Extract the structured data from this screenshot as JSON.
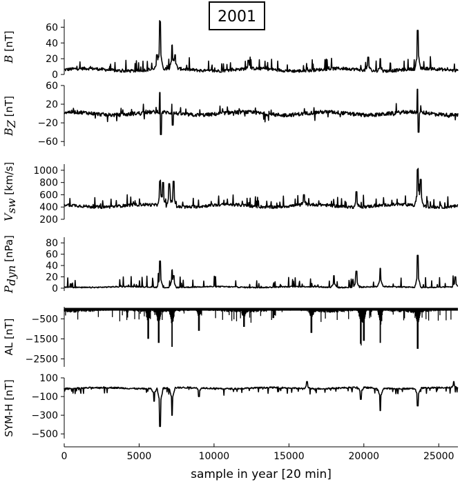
{
  "title": "2001",
  "xlabel": "sample in year [20 min]",
  "chart_data": {
    "type": "line",
    "title": "2001",
    "xlabel": "sample in year [20 min]",
    "xlim": [
      0,
      26280
    ],
    "xticks": [
      0,
      5000,
      10000,
      15000,
      20000,
      25000
    ],
    "xtick_labels": [
      "0",
      "5000",
      "10000",
      "15000",
      "20000",
      "25000"
    ],
    "panels": [
      {
        "ylabel_symbol": "B",
        "ylabel_subscript": "",
        "ylabel_unit": "[nT]",
        "ylim": [
          0,
          70
        ],
        "yticks": [
          0,
          20,
          40,
          60
        ],
        "ytick_labels": [
          "0",
          "20",
          "40",
          "60"
        ],
        "baseline": 6,
        "noise": 2,
        "floor": 2,
        "spikes": [
          [
            6400,
            67
          ],
          [
            6200,
            25
          ],
          [
            7200,
            37
          ],
          [
            7400,
            25
          ],
          [
            23600,
            56
          ],
          [
            20300,
            22
          ],
          [
            21100,
            20
          ],
          [
            12300,
            18
          ]
        ],
        "mode": "line"
      },
      {
        "ylabel_symbol": "B",
        "ylabel_subscript": "Z",
        "ylabel_unit": "[nT]",
        "ylim": [
          -70,
          60
        ],
        "yticks": [
          -60,
          -20,
          20,
          60
        ],
        "ytick_labels": [
          "−60",
          "−20",
          "20",
          "60"
        ],
        "baseline": 0,
        "noise": 4,
        "spikes": [
          [
            6400,
            45
          ],
          [
            6450,
            -45
          ],
          [
            23600,
            52
          ],
          [
            23650,
            -40
          ],
          [
            7200,
            20
          ],
          [
            7250,
            -25
          ]
        ],
        "mode": "line"
      },
      {
        "ylabel_symbol": "V",
        "ylabel_subscript": "sw",
        "ylabel_unit": "[km/s]",
        "ylim": [
          200,
          1100
        ],
        "yticks": [
          200,
          400,
          600,
          800,
          1000
        ],
        "ytick_labels": [
          "200",
          "400",
          "600",
          "800",
          "1000"
        ],
        "baseline": 420,
        "noise": 25,
        "floor": 260,
        "spikes": [
          [
            6400,
            820
          ],
          [
            6600,
            800
          ],
          [
            7000,
            780
          ],
          [
            7300,
            820
          ],
          [
            23600,
            1010
          ],
          [
            23800,
            850
          ],
          [
            16000,
            600
          ],
          [
            19500,
            650
          ]
        ],
        "mode": "line"
      },
      {
        "ylabel_symbol": "P",
        "ylabel_subscript": "dyn",
        "ylabel_unit": "[nPa]",
        "ylim": [
          -5,
          90
        ],
        "yticks": [
          0,
          20,
          40,
          60,
          80
        ],
        "ytick_labels": [
          "0",
          "20",
          "40",
          "60",
          "80"
        ],
        "baseline": 2,
        "noise": 1,
        "floor": 0,
        "spikes": [
          [
            6400,
            48
          ],
          [
            7200,
            28
          ],
          [
            7300,
            22
          ],
          [
            21100,
            35
          ],
          [
            23600,
            58
          ],
          [
            18000,
            22
          ],
          [
            26100,
            20
          ],
          [
            19500,
            30
          ]
        ],
        "mode": "line"
      },
      {
        "ylabel_symbol": "",
        "ylabel_subscript": "",
        "ylabel_unit": "AL [nT]",
        "ylim": [
          -2900,
          100
        ],
        "yticks": [
          -500,
          -1500,
          -2500
        ],
        "ytick_labels": [
          "−500",
          "−1500",
          "−2500"
        ],
        "baseline": -80,
        "noise": 60,
        "ceil": -20,
        "spikes": [
          [
            5600,
            -1500
          ],
          [
            6300,
            -1700
          ],
          [
            7200,
            -1900
          ],
          [
            19800,
            -1750
          ],
          [
            20000,
            -1600
          ],
          [
            21100,
            -1700
          ],
          [
            23600,
            -2000
          ],
          [
            9000,
            -1100
          ],
          [
            12000,
            -900
          ],
          [
            16500,
            -1200
          ]
        ],
        "mode": "bars"
      },
      {
        "ylabel_symbol": "",
        "ylabel_subscript": "",
        "ylabel_unit": "SYM-H [nT]",
        "ylim": [
          -550,
          100
        ],
        "yticks": [
          100,
          -100,
          -300,
          -500
        ],
        "ytick_labels": [
          "100",
          "−100",
          "−300",
          "−500"
        ],
        "baseline": -10,
        "noise": 8,
        "spikes": [
          [
            6400,
            -420
          ],
          [
            7200,
            -300
          ],
          [
            6000,
            -150
          ],
          [
            21100,
            -250
          ],
          [
            23600,
            -200
          ],
          [
            19800,
            -130
          ],
          [
            16200,
            60
          ],
          [
            26000,
            60
          ],
          [
            9000,
            -100
          ]
        ],
        "mode": "line"
      }
    ]
  }
}
